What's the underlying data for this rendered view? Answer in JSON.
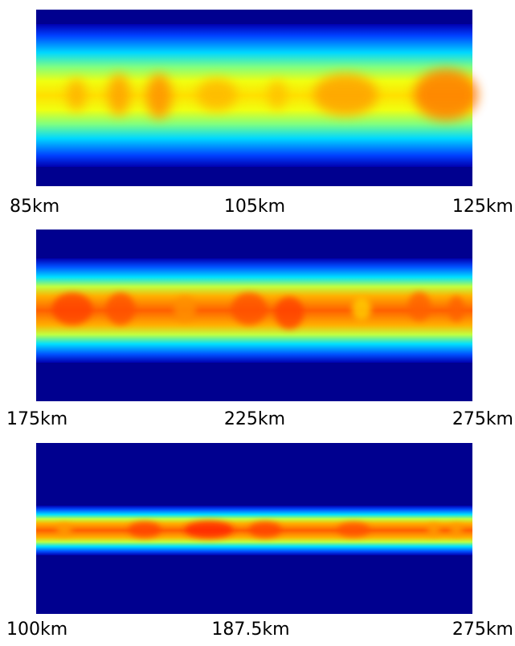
{
  "panels": [
    {
      "labels": [
        "85km",
        "105km",
        "125km"
      ]
    },
    {
      "labels": [
        "175km",
        "225km",
        "275km"
      ]
    },
    {
      "labels": [
        "100km",
        "187.5km",
        "275km"
      ]
    }
  ]
}
